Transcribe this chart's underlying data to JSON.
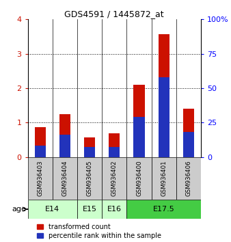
{
  "title": "GDS4591 / 1445872_at",
  "samples": [
    "GSM936403",
    "GSM936404",
    "GSM936405",
    "GSM936402",
    "GSM936400",
    "GSM936401",
    "GSM936406"
  ],
  "transformed_count": [
    0.87,
    1.24,
    0.57,
    0.68,
    2.1,
    3.56,
    1.4
  ],
  "percentile_rank_pct": [
    8,
    16,
    7,
    7,
    29,
    58,
    18
  ],
  "bar_width": 0.45,
  "red_color": "#cc1100",
  "blue_color": "#2233bb",
  "ylim_left": [
    0,
    4
  ],
  "ylim_right": [
    0,
    100
  ],
  "yticks_left": [
    0,
    1,
    2,
    3,
    4
  ],
  "yticks_right": [
    0,
    25,
    50,
    75,
    100
  ],
  "age_groups": [
    {
      "label": "E14",
      "start": 0,
      "end": 2,
      "color": "#ccffcc"
    },
    {
      "label": "E15",
      "start": 2,
      "end": 3,
      "color": "#ccffcc"
    },
    {
      "label": "E16",
      "start": 3,
      "end": 4,
      "color": "#ccffcc"
    },
    {
      "label": "E17.5",
      "start": 4,
      "end": 7,
      "color": "#44cc44"
    }
  ],
  "sample_box_color": "#cccccc",
  "dotted_levels": [
    1,
    2,
    3
  ],
  "legend_red_label": "transformed count",
  "legend_blue_label": "percentile rank within the sample"
}
